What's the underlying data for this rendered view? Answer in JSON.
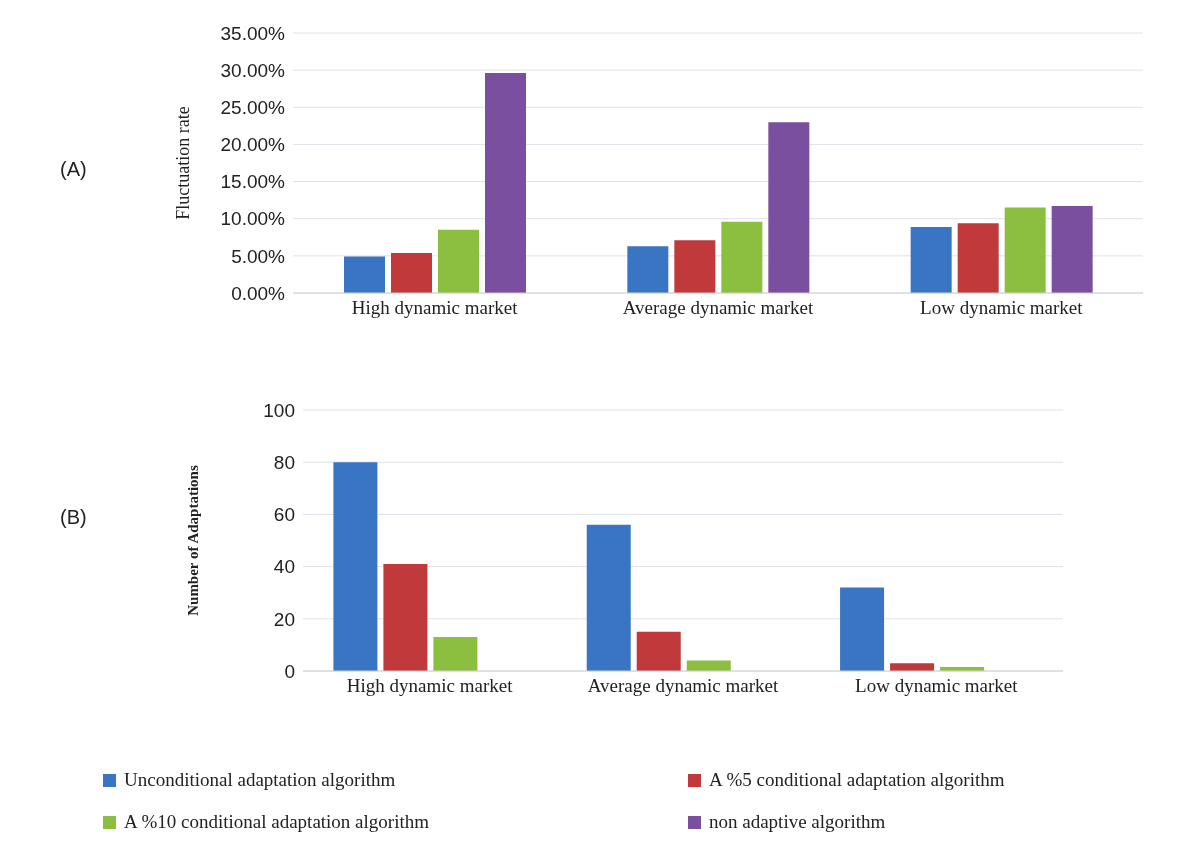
{
  "chart_data": [
    {
      "type": "bar",
      "annotations": [
        "(A)"
      ],
      "ylabel": "Fluctuation rate",
      "categories": [
        "High dynamic market",
        "Average dynamic market",
        "Low dynamic market"
      ],
      "series": [
        {
          "color": "#3a75c4",
          "values": [
            4.9,
            6.3,
            8.9
          ]
        },
        {
          "color": "#c0393b",
          "values": [
            5.4,
            7.1,
            9.4
          ]
        },
        {
          "color": "#8cbf3f",
          "values": [
            8.5,
            9.6,
            11.5
          ]
        },
        {
          "color": "#7a4fa0",
          "values": [
            29.6,
            23.0,
            11.7
          ]
        }
      ],
      "ylim": [
        0,
        35
      ],
      "yticks": [
        {
          "value": 0,
          "label": "0.00%"
        },
        {
          "value": 5,
          "label": "5.00%"
        },
        {
          "value": 10,
          "label": "10.00%"
        },
        {
          "value": 15,
          "label": "15.00%"
        },
        {
          "value": 20,
          "label": "20.00%"
        },
        {
          "value": 25,
          "label": "25.00%"
        },
        {
          "value": 30,
          "label": "30.00%"
        },
        {
          "value": 35,
          "label": "35.00%"
        }
      ],
      "grid": "y"
    },
    {
      "type": "bar",
      "annotations": [
        "(B)"
      ],
      "ylabel": "Number of Adaptations",
      "categories": [
        "High dynamic market",
        "Average dynamic market",
        "Low dynamic market"
      ],
      "series": [
        {
          "name": "Unconditional adaptation algorithm",
          "color": "#3a75c4",
          "values": [
            80,
            56,
            32
          ]
        },
        {
          "name": "A %5 conditional adaptation algorithm",
          "color": "#c0393b",
          "values": [
            41,
            15,
            3
          ]
        },
        {
          "name": "A %10 conditional adaptation algorithm",
          "color": "#8cbf3f",
          "values": [
            13,
            4,
            1.5
          ]
        },
        {
          "name": "non adaptive algorithm",
          "color": "#7a4fa0",
          "values": [
            null,
            null,
            null
          ]
        }
      ],
      "ylim": [
        0,
        100
      ],
      "yticks": [
        0,
        20,
        40,
        60,
        80,
        100
      ],
      "grid": "y",
      "legend": "bottom"
    }
  ]
}
